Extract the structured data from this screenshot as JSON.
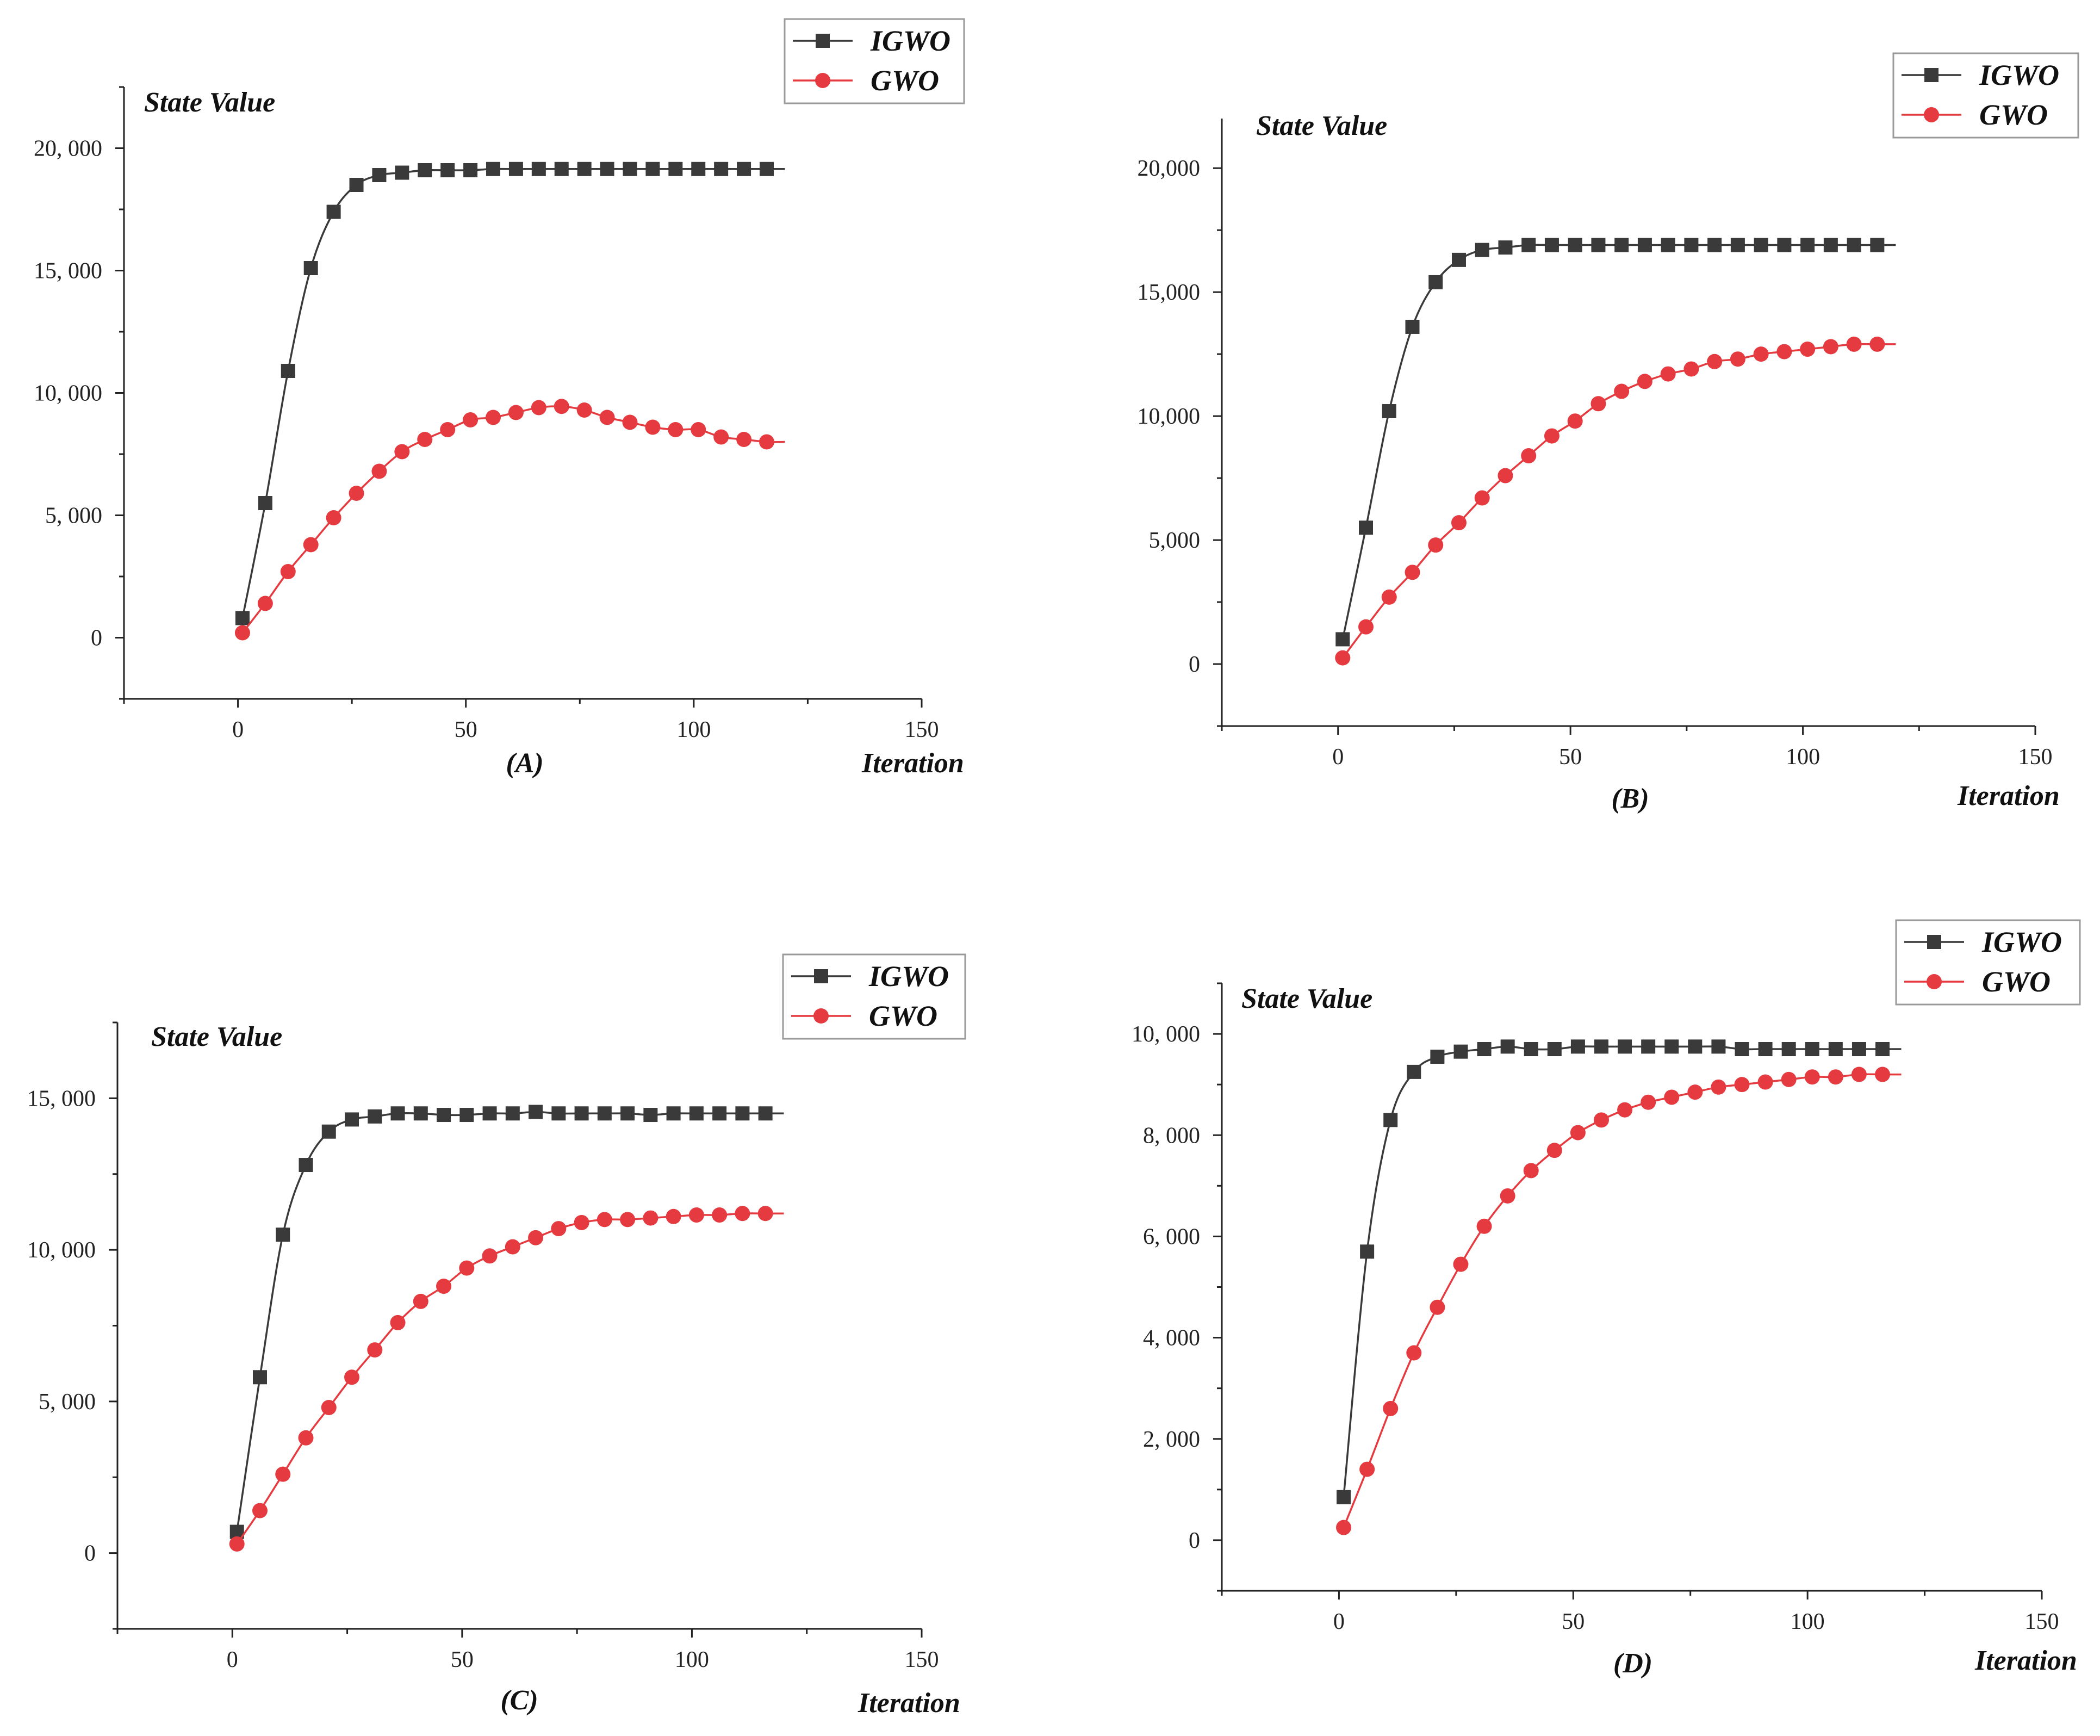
{
  "colors": {
    "igwo": "#3a3a3a",
    "gwo": "#e53a3f",
    "axis": "#222222",
    "legend_border": "#9a9a9a"
  },
  "chart_data": [
    {
      "type": "line",
      "panel_label": "(A)",
      "ylabel": "State Value",
      "xlabel": "Iteration",
      "xlim": [
        -25,
        150
      ],
      "ylim": [
        -2500,
        22500
      ],
      "xticks": [
        0,
        50,
        100,
        150
      ],
      "xtick_labels": [
        "0",
        "50",
        "100",
        "150"
      ],
      "yticks": [
        0,
        5000,
        10000,
        15000,
        20000
      ],
      "ytick_labels": [
        "0",
        "5, 000",
        "10, 000",
        "15, 000",
        "20, 000"
      ],
      "legend": {
        "position": "top-right",
        "entries": [
          "IGWO",
          "GWO"
        ]
      },
      "x": [
        1,
        6,
        11,
        16,
        21,
        26,
        31,
        36,
        41,
        46,
        51,
        56,
        61,
        66,
        71,
        76,
        81,
        86,
        91,
        96,
        101,
        106,
        111,
        116
      ],
      "x_end": 120,
      "series": [
        {
          "name": "IGWO",
          "marker": "square",
          "color": "#3a3a3a",
          "values": [
            800,
            5500,
            10900,
            15100,
            17400,
            18500,
            18900,
            19000,
            19100,
            19100,
            19100,
            19150,
            19150,
            19150,
            19150,
            19150,
            19150,
            19150,
            19150,
            19150,
            19150,
            19150,
            19150,
            19150
          ]
        },
        {
          "name": "GWO",
          "marker": "circle",
          "color": "#e53a3f",
          "values": [
            200,
            1400,
            2700,
            3800,
            4900,
            5900,
            6800,
            7600,
            8100,
            8500,
            8900,
            9000,
            9200,
            9400,
            9450,
            9300,
            9000,
            8800,
            8600,
            8500,
            8500,
            8200,
            8100,
            8000
          ]
        }
      ]
    },
    {
      "type": "line",
      "panel_label": "(B)",
      "ylabel": "State Value",
      "xlabel": "Iteration",
      "xlim": [
        -25,
        150
      ],
      "ylim": [
        -2500,
        22000
      ],
      "xticks": [
        0,
        50,
        100,
        150
      ],
      "xtick_labels": [
        "0",
        "50",
        "100",
        "150"
      ],
      "yticks": [
        0,
        5000,
        10000,
        15000,
        20000
      ],
      "ytick_labels": [
        "0",
        "5,000",
        "10,000",
        "15,000",
        "20,000"
      ],
      "legend": {
        "position": "top-right",
        "entries": [
          "IGWO",
          "GWO"
        ]
      },
      "x": [
        1,
        6,
        11,
        16,
        21,
        26,
        31,
        36,
        41,
        46,
        51,
        56,
        61,
        66,
        71,
        76,
        81,
        86,
        91,
        96,
        101,
        106,
        111,
        116
      ],
      "x_end": 120,
      "series": [
        {
          "name": "IGWO",
          "marker": "square",
          "color": "#3a3a3a",
          "values": [
            1000,
            5500,
            10200,
            13600,
            15400,
            16300,
            16700,
            16800,
            16900,
            16900,
            16900,
            16900,
            16900,
            16900,
            16900,
            16900,
            16900,
            16900,
            16900,
            16900,
            16900,
            16900,
            16900,
            16900
          ]
        },
        {
          "name": "GWO",
          "marker": "circle",
          "color": "#e53a3f",
          "values": [
            250,
            1500,
            2700,
            3700,
            4800,
            5700,
            6700,
            7600,
            8400,
            9200,
            9800,
            10500,
            11000,
            11400,
            11700,
            11900,
            12200,
            12300,
            12500,
            12600,
            12700,
            12800,
            12900,
            12900
          ]
        }
      ]
    },
    {
      "type": "line",
      "panel_label": "(C)",
      "ylabel": "State Value",
      "xlabel": "Iteration",
      "xlim": [
        -25,
        150
      ],
      "ylim": [
        -2500,
        17500
      ],
      "xticks": [
        0,
        50,
        100,
        150
      ],
      "xtick_labels": [
        "0",
        "50",
        "100",
        "150"
      ],
      "yticks": [
        0,
        5000,
        10000,
        15000
      ],
      "ytick_labels": [
        "0",
        "5, 000",
        "10, 000",
        "15, 000"
      ],
      "legend": {
        "position": "top-right",
        "entries": [
          "IGWO",
          "GWO"
        ]
      },
      "x": [
        1,
        6,
        11,
        16,
        21,
        26,
        31,
        36,
        41,
        46,
        51,
        56,
        61,
        66,
        71,
        76,
        81,
        86,
        91,
        96,
        101,
        106,
        111,
        116
      ],
      "x_end": 120,
      "series": [
        {
          "name": "IGWO",
          "marker": "square",
          "color": "#3a3a3a",
          "values": [
            700,
            5800,
            10500,
            12800,
            13900,
            14300,
            14400,
            14500,
            14500,
            14450,
            14450,
            14500,
            14500,
            14550,
            14500,
            14500,
            14500,
            14500,
            14450,
            14500,
            14500,
            14500,
            14500,
            14500
          ]
        },
        {
          "name": "GWO",
          "marker": "circle",
          "color": "#e53a3f",
          "values": [
            300,
            1400,
            2600,
            3800,
            4800,
            5800,
            6700,
            7600,
            8300,
            8800,
            9400,
            9800,
            10100,
            10400,
            10700,
            10900,
            11000,
            11000,
            11050,
            11100,
            11150,
            11150,
            11200,
            11200
          ]
        }
      ]
    },
    {
      "type": "line",
      "panel_label": "(D)",
      "ylabel": "State Value",
      "xlabel": "Iteration",
      "xlim": [
        -25,
        150
      ],
      "ylim": [
        -1000,
        11000
      ],
      "xticks": [
        0,
        50,
        100,
        150
      ],
      "xtick_labels": [
        "0",
        "50",
        "100",
        "150"
      ],
      "yticks": [
        0,
        2000,
        4000,
        6000,
        8000,
        10000
      ],
      "ytick_labels": [
        "0",
        "2, 000",
        "4, 000",
        "6, 000",
        "8, 000",
        "10, 000"
      ],
      "legend": {
        "position": "top-right",
        "entries": [
          "IGWO",
          "GWO"
        ]
      },
      "x": [
        1,
        6,
        11,
        16,
        21,
        26,
        31,
        36,
        41,
        46,
        51,
        56,
        61,
        66,
        71,
        76,
        81,
        86,
        91,
        96,
        101,
        106,
        111,
        116
      ],
      "x_end": 120,
      "series": [
        {
          "name": "IGWO",
          "marker": "square",
          "color": "#3a3a3a",
          "values": [
            850,
            5700,
            8300,
            9250,
            9550,
            9650,
            9700,
            9750,
            9700,
            9700,
            9750,
            9750,
            9750,
            9750,
            9750,
            9750,
            9750,
            9700,
            9700,
            9700,
            9700,
            9700,
            9700,
            9700
          ]
        },
        {
          "name": "GWO",
          "marker": "circle",
          "color": "#e53a3f",
          "values": [
            250,
            1400,
            2600,
            3700,
            4600,
            5450,
            6200,
            6800,
            7300,
            7700,
            8050,
            8300,
            8500,
            8650,
            8750,
            8850,
            8950,
            9000,
            9050,
            9100,
            9150,
            9150,
            9200,
            9200
          ]
        }
      ]
    }
  ]
}
